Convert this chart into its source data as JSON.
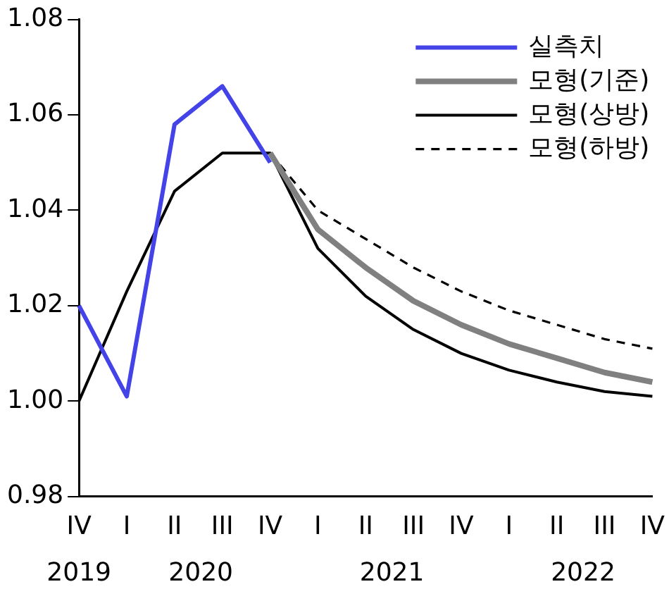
{
  "chart_data": {
    "type": "line",
    "categories": [
      "IV",
      "I",
      "II",
      "III",
      "IV",
      "I",
      "II",
      "III",
      "IV",
      "I",
      "II",
      "III",
      "IV"
    ],
    "annotations": [
      "2019",
      "2020",
      "2021",
      "2022"
    ],
    "series": [
      {
        "name": "실측치",
        "color": "#4343e8",
        "values": [
          1.02,
          1.001,
          1.058,
          1.066,
          1.05,
          null,
          null,
          null,
          null,
          null,
          null,
          null,
          null
        ]
      },
      {
        "name": "모형(기준)",
        "color": "#808080",
        "values": [
          null,
          null,
          null,
          null,
          1.052,
          1.036,
          1.028,
          1.021,
          1.016,
          1.012,
          1.009,
          1.006,
          1.004
        ]
      },
      {
        "name": "모형(상방)",
        "color": "#000000",
        "values": [
          1.0,
          1.023,
          1.044,
          1.052,
          1.052,
          1.032,
          1.022,
          1.015,
          1.01,
          1.0065,
          1.004,
          1.002,
          1.001
        ]
      },
      {
        "name": "모형(하방)",
        "color": "#000000",
        "line_style": "dashed",
        "values": [
          null,
          null,
          null,
          null,
          1.052,
          1.04,
          1.034,
          1.028,
          1.023,
          1.019,
          1.016,
          1.013,
          1.011
        ]
      }
    ],
    "ylim": [
      0.98,
      1.08
    ],
    "yticks": [
      0.98,
      {
        "value": 1.0,
        "label": "1.00"
      },
      1.02,
      1.04,
      1.06,
      1.08
    ],
    "grid": false,
    "legend": "top right",
    "marker": "none"
  }
}
